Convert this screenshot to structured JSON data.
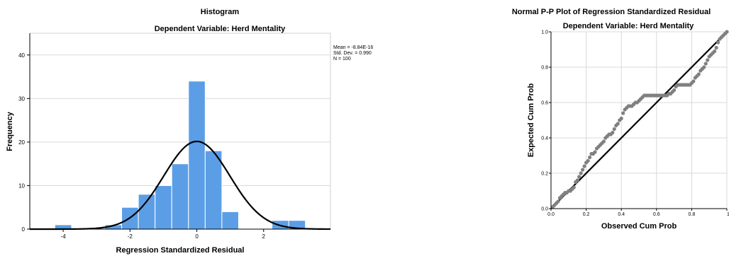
{
  "chart_data": [
    {
      "type": "bar",
      "title": "Histogram",
      "subtitle": "Dependent Variable: Herd Mentality",
      "xlabel": "Regression Standardized Residual",
      "ylabel": "Frequency",
      "bin_edges": [
        -4.25,
        -3.75,
        -3.25,
        -2.75,
        -2.25,
        -1.75,
        -1.25,
        -0.75,
        -0.25,
        0.25,
        0.75,
        1.25,
        1.75,
        2.25,
        2.75,
        3.25
      ],
      "values": [
        1,
        0,
        0,
        1,
        5,
        8,
        10,
        15,
        34,
        18,
        4,
        0,
        0,
        2,
        2
      ],
      "xlim": [
        -5.0,
        4.0
      ],
      "ylim": [
        0,
        45
      ],
      "xticks": [
        -4,
        -2,
        0,
        2
      ],
      "yticks": [
        0,
        10,
        20,
        30,
        40
      ],
      "bar_color": "#5b9ee6",
      "normal_curve": {
        "mean": 0,
        "sd": 0.99,
        "n": 100,
        "bin_width": 0.5
      },
      "stats": {
        "mean": "Mean = -8.84E-16",
        "sd": "Std. Dev. = 0.990",
        "n": "N = 100"
      }
    },
    {
      "type": "scatter",
      "title": "Normal P-P Plot of Regression Standardized Residual",
      "subtitle": "Dependent Variable: Herd Mentality",
      "xlabel": "Observed Cum Prob",
      "ylabel": "Expected Cum Prob",
      "xlim": [
        0,
        1
      ],
      "ylim": [
        0,
        1
      ],
      "xticks": [
        "0.0",
        "0.2",
        "0.4",
        "0.6",
        "0.8",
        "1.0"
      ],
      "yticks": [
        "0.0",
        "0.2",
        "0.4",
        "0.6",
        "0.8",
        "1.0"
      ],
      "point_color": "#808080",
      "reference_line": [
        [
          0,
          0
        ],
        [
          1,
          1
        ]
      ],
      "points": [
        [
          0.01,
          0.01
        ],
        [
          0.02,
          0.02
        ],
        [
          0.03,
          0.03
        ],
        [
          0.04,
          0.04
        ],
        [
          0.05,
          0.06
        ],
        [
          0.06,
          0.07
        ],
        [
          0.07,
          0.08
        ],
        [
          0.08,
          0.09
        ],
        [
          0.09,
          0.09
        ],
        [
          0.1,
          0.1
        ],
        [
          0.11,
          0.1
        ],
        [
          0.12,
          0.11
        ],
        [
          0.13,
          0.12
        ],
        [
          0.14,
          0.15
        ],
        [
          0.15,
          0.16
        ],
        [
          0.16,
          0.18
        ],
        [
          0.17,
          0.2
        ],
        [
          0.18,
          0.22
        ],
        [
          0.19,
          0.24
        ],
        [
          0.2,
          0.26
        ],
        [
          0.21,
          0.27
        ],
        [
          0.22,
          0.29
        ],
        [
          0.23,
          0.31
        ],
        [
          0.24,
          0.31
        ],
        [
          0.25,
          0.32
        ],
        [
          0.26,
          0.34
        ],
        [
          0.27,
          0.35
        ],
        [
          0.28,
          0.36
        ],
        [
          0.29,
          0.37
        ],
        [
          0.3,
          0.38
        ],
        [
          0.31,
          0.4
        ],
        [
          0.32,
          0.41
        ],
        [
          0.33,
          0.42
        ],
        [
          0.34,
          0.42
        ],
        [
          0.35,
          0.43
        ],
        [
          0.36,
          0.45
        ],
        [
          0.37,
          0.47
        ],
        [
          0.38,
          0.48
        ],
        [
          0.39,
          0.5
        ],
        [
          0.4,
          0.51
        ],
        [
          0.41,
          0.54
        ],
        [
          0.42,
          0.56
        ],
        [
          0.43,
          0.57
        ],
        [
          0.44,
          0.58
        ],
        [
          0.45,
          0.58
        ],
        [
          0.46,
          0.58
        ],
        [
          0.47,
          0.59
        ],
        [
          0.48,
          0.6
        ],
        [
          0.49,
          0.6
        ],
        [
          0.5,
          0.61
        ],
        [
          0.51,
          0.62
        ],
        [
          0.52,
          0.63
        ],
        [
          0.53,
          0.64
        ],
        [
          0.54,
          0.64
        ],
        [
          0.55,
          0.64
        ],
        [
          0.56,
          0.64
        ],
        [
          0.57,
          0.64
        ],
        [
          0.58,
          0.64
        ],
        [
          0.59,
          0.64
        ],
        [
          0.6,
          0.64
        ],
        [
          0.61,
          0.64
        ],
        [
          0.62,
          0.64
        ],
        [
          0.63,
          0.64
        ],
        [
          0.64,
          0.64
        ],
        [
          0.65,
          0.64
        ],
        [
          0.66,
          0.64
        ],
        [
          0.67,
          0.65
        ],
        [
          0.68,
          0.65
        ],
        [
          0.69,
          0.66
        ],
        [
          0.7,
          0.67
        ],
        [
          0.71,
          0.69
        ],
        [
          0.72,
          0.7
        ],
        [
          0.73,
          0.7
        ],
        [
          0.74,
          0.7
        ],
        [
          0.75,
          0.7
        ],
        [
          0.76,
          0.7
        ],
        [
          0.77,
          0.7
        ],
        [
          0.78,
          0.7
        ],
        [
          0.79,
          0.7
        ],
        [
          0.8,
          0.71
        ],
        [
          0.81,
          0.72
        ],
        [
          0.82,
          0.74
        ],
        [
          0.83,
          0.75
        ],
        [
          0.84,
          0.76
        ],
        [
          0.85,
          0.78
        ],
        [
          0.86,
          0.79
        ],
        [
          0.87,
          0.8
        ],
        [
          0.88,
          0.82
        ],
        [
          0.89,
          0.84
        ],
        [
          0.9,
          0.86
        ],
        [
          0.91,
          0.87
        ],
        [
          0.92,
          0.88
        ],
        [
          0.93,
          0.89
        ],
        [
          0.94,
          0.91
        ],
        [
          0.95,
          0.94
        ],
        [
          0.96,
          0.96
        ],
        [
          0.97,
          0.97
        ],
        [
          0.98,
          0.98
        ],
        [
          0.99,
          0.99
        ],
        [
          1.0,
          1.0
        ]
      ]
    }
  ]
}
